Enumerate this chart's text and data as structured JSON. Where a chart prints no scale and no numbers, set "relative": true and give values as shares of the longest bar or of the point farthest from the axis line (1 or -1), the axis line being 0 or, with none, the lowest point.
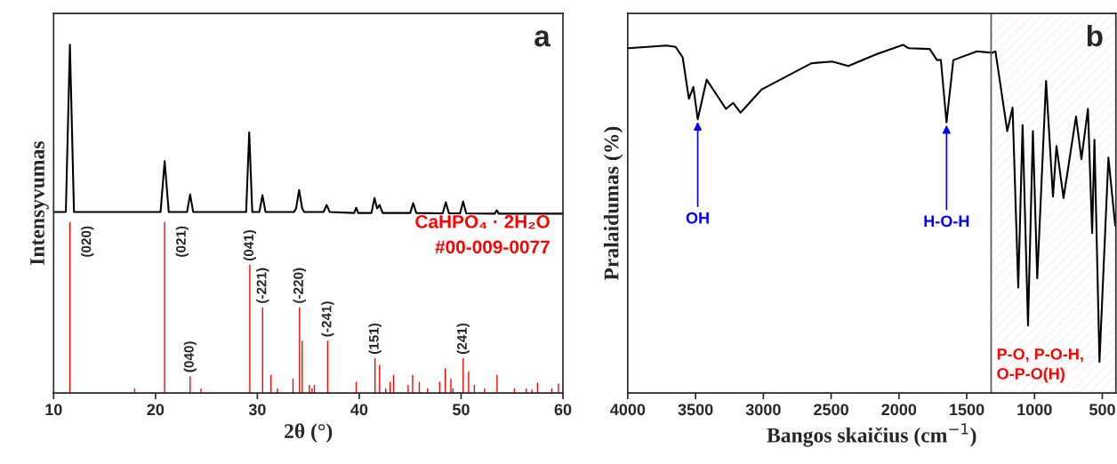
{
  "chart_data": [
    {
      "type": "line",
      "relative": true,
      "xlabel": "2θ (°)",
      "ylabel": "Intensyvumas",
      "xlim": [
        10,
        60
      ],
      "xticks": [
        10,
        20,
        30,
        40,
        50,
        60
      ],
      "tick_labels": "x",
      "grid": false,
      "legend": false,
      "marker": "none",
      "line_style": "solid",
      "annotations": [
        "a",
        {
          "text": "(020)",
          "x": 11.6,
          "y": 0.491
        },
        {
          "text": "(021)",
          "x": 20.9,
          "y": 0.491
        },
        {
          "text": "(040)",
          "x": 23.4,
          "y": 0.048
        },
        {
          "text": "(041)",
          "x": 29.26,
          "y": 0.368
        },
        {
          "text": "(-221)",
          "x": 30.52,
          "y": 0.246
        },
        {
          "text": "(-220)",
          "x": 34.14,
          "y": 0.246
        },
        {
          "text": "(-241)",
          "x": 36.9,
          "y": 0.15
        },
        {
          "text": "(151)",
          "x": 41.55,
          "y": 0.1
        },
        {
          "text": "(241)",
          "x": 50.2,
          "y": 0.1
        }
      ],
      "series": [
        {
          "color": "#000000",
          "x": [
            10,
            11.2,
            11.6,
            12.0,
            20.5,
            20.9,
            21.3,
            23.1,
            23.4,
            23.7,
            28.9,
            29.2,
            29.5,
            30.2,
            30.5,
            30.8,
            33.6,
            33.8,
            34.1,
            34.4,
            34.6,
            36.5,
            36.8,
            37.1,
            39.5,
            39.7,
            39.9,
            41.2,
            41.5,
            41.75,
            42.0,
            42.3,
            45.0,
            45.3,
            45.6,
            48.2,
            48.5,
            48.8,
            49.9,
            50.2,
            50.5,
            53.3,
            53.5,
            53.7,
            60
          ],
          "values": [
            0.52,
            0.52,
            1.0,
            0.52,
            0.52,
            0.666,
            0.52,
            0.52,
            0.57,
            0.52,
            0.52,
            0.749,
            0.52,
            0.52,
            0.568,
            0.52,
            0.52,
            0.53,
            0.583,
            0.53,
            0.52,
            0.52,
            0.54,
            0.52,
            0.517,
            0.532,
            0.517,
            0.517,
            0.56,
            0.53,
            0.54,
            0.517,
            0.517,
            0.545,
            0.517,
            0.516,
            0.548,
            0.516,
            0.516,
            0.55,
            0.516,
            0.515,
            0.525,
            0.515,
            0.515
          ]
        },
        {
          "type": "bar",
          "name": "CaHPO₄ · 2H₂O\n#00-009-0077",
          "color": "#ff0000",
          "x": [
            11.6,
            17.96,
            20.9,
            23.4,
            24.47,
            29.26,
            30.52,
            31.33,
            31.97,
            33.5,
            34.14,
            34.4,
            35.1,
            35.37,
            35.6,
            36.9,
            39.7,
            41.55,
            42.0,
            42.6,
            43.04,
            43.37,
            44.8,
            45.24,
            45.9,
            46.7,
            47.9,
            48.45,
            49.0,
            49.2,
            50.2,
            50.74,
            51.3,
            52.3,
            53.53,
            55.24,
            56.4,
            56.96,
            57.5,
            58.9,
            59.55
          ],
          "values": [
            0.491,
            0.013,
            0.491,
            0.048,
            0.013,
            0.368,
            0.246,
            0.052,
            0.013,
            0.042,
            0.246,
            0.15,
            0.023,
            0.013,
            0.023,
            0.15,
            0.032,
            0.1,
            0.081,
            0.013,
            0.032,
            0.052,
            0.023,
            0.052,
            0.032,
            0.013,
            0.032,
            0.071,
            0.042,
            0.013,
            0.1,
            0.062,
            0.023,
            0.013,
            0.052,
            0.013,
            0.013,
            0.01,
            0.03,
            0.013,
            0.027
          ]
        }
      ]
    },
    {
      "type": "line",
      "relative": true,
      "xlabel": "Bangos skaičius (cm$^{−1}$)",
      "ylabel": "Pralaidumas (%)",
      "xlim": [
        4000,
        400
      ],
      "xticks": [
        4000,
        3500,
        3000,
        2500,
        2000,
        1500,
        1000,
        500
      ],
      "tick_labels": "x",
      "grid": false,
      "legend": false,
      "marker": "none",
      "line_style": "solid",
      "bands": [
        {
          "axis": "x",
          "from": 1320,
          "to": 400,
          "label": "P-O, P-O-H,\nO-P-O(H)",
          "color": "#ff0000"
        }
      ],
      "ref_lines": [
        {
          "axis": "x",
          "value": 1320,
          "color": "#555555",
          "line_style": "solid"
        }
      ],
      "annotations": [
        "b",
        {
          "text": "OH",
          "x": 3484,
          "y": 0.786
        },
        {
          "text": "H-O-H",
          "x": 1649,
          "y": 0.777
        }
      ],
      "series": [
        {
          "color": "#000000",
          "x": [
            4000,
            3712,
            3647,
            3595,
            3549,
            3516,
            3484,
            3418,
            3276,
            3222,
            3168,
            3015,
            2645,
            2492,
            2373,
            2166,
            1970,
            1927,
            1773,
            1719,
            1691,
            1649,
            1599,
            1425,
            1316,
            1288,
            1201,
            1162,
            1120,
            1088,
            1048,
            1012,
            980,
            915,
            864,
            838,
            786,
            694,
            654,
            606,
            575,
            558,
            521,
            455,
            405
          ],
          "values": [
            0.99,
            0.998,
            0.994,
            0.964,
            0.845,
            0.879,
            0.786,
            0.9,
            0.816,
            0.833,
            0.805,
            0.871,
            0.947,
            0.952,
            0.939,
            0.973,
            1.0,
            0.99,
            0.988,
            0.956,
            0.957,
            0.777,
            0.956,
            0.981,
            0.977,
            0.981,
            0.752,
            0.82,
            0.303,
            0.769,
            0.194,
            0.752,
            0.329,
            0.896,
            0.564,
            0.709,
            0.56,
            0.794,
            0.672,
            0.816,
            0.459,
            0.727,
            0.09,
            0.676,
            0.481
          ]
        }
      ]
    }
  ]
}
